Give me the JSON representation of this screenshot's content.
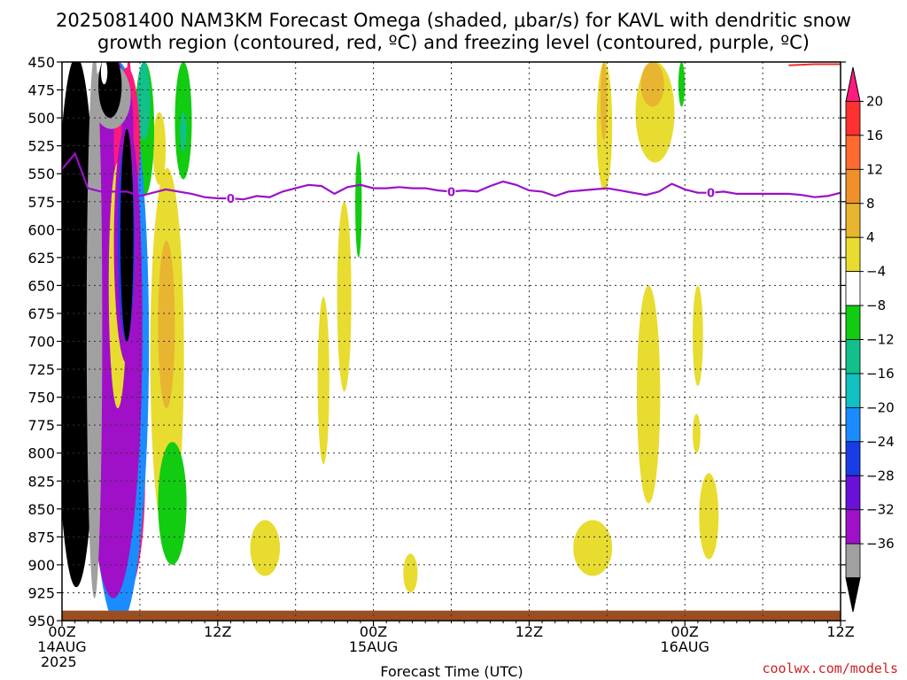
{
  "chart_data": {
    "type": "heatmap",
    "title_line1": "2025081400 NAM3KM Forecast Omega (shaded, μbar/s) for KAVL with dendritic snow",
    "title_line2": "growth region (contoured, red, ºC) and freezing level (contoured, purple, ºC)",
    "xlabel": "Forecast Time (UTC)",
    "credit": "coolwx.com/models",
    "x_unit": "forecast hour",
    "xlim": [
      0,
      60
    ],
    "ylim": [
      450,
      950
    ],
    "y_ticks": [
      450,
      475,
      500,
      525,
      550,
      575,
      600,
      625,
      650,
      675,
      700,
      725,
      750,
      775,
      800,
      825,
      850,
      875,
      900,
      925,
      950
    ],
    "x_ticks": [
      {
        "x": 0,
        "lines": [
          "00Z",
          "14AUG",
          "2025"
        ]
      },
      {
        "x": 12,
        "lines": [
          "12Z"
        ]
      },
      {
        "x": 24,
        "lines": [
          "00Z",
          "15AUG"
        ]
      },
      {
        "x": 36,
        "lines": [
          "12Z"
        ]
      },
      {
        "x": 48,
        "lines": [
          "00Z",
          "16AUG"
        ]
      },
      {
        "x": 60,
        "lines": [
          "12Z"
        ]
      }
    ],
    "grid": true,
    "colorbar": {
      "labels": [
        "20",
        "16",
        "12",
        "8",
        "4",
        "−4",
        "−8",
        "−12",
        "−16",
        "−20",
        "−24",
        "−28",
        "−32",
        "−36"
      ],
      "bins": [
        {
          "color": "#ff1a7d",
          "kind": "triangle-up"
        },
        {
          "color": "#ff3030"
        },
        {
          "color": "#ff6a30"
        },
        {
          "color": "#f0902a"
        },
        {
          "color": "#e8b530"
        },
        {
          "color": "#e8dc30"
        },
        {
          "color": "#ffffff"
        },
        {
          "color": "#11cc11"
        },
        {
          "color": "#11c08a"
        },
        {
          "color": "#11c0c0"
        },
        {
          "color": "#1a8cff"
        },
        {
          "color": "#1a3ce6"
        },
        {
          "color": "#6a10d8"
        },
        {
          "color": "#a010c8"
        },
        {
          "color": "#a0a0a0"
        },
        {
          "color": "#000000",
          "kind": "triangle-down"
        }
      ]
    },
    "freezing_level": {
      "label": "0",
      "color": "#9a10c8",
      "label_at_hours": [
        13,
        30,
        50
      ],
      "points": [
        [
          0,
          546
        ],
        [
          1,
          532
        ],
        [
          2,
          563
        ],
        [
          3,
          566
        ],
        [
          4,
          566
        ],
        [
          5,
          566
        ],
        [
          6,
          570
        ],
        [
          7,
          567
        ],
        [
          8,
          564
        ],
        [
          9,
          566
        ],
        [
          10,
          568
        ],
        [
          11,
          571
        ],
        [
          12,
          572
        ],
        [
          13,
          572
        ],
        [
          14,
          573
        ],
        [
          15,
          570
        ],
        [
          16,
          571
        ],
        [
          17,
          566
        ],
        [
          18,
          563
        ],
        [
          19,
          560
        ],
        [
          20,
          561
        ],
        [
          21,
          568
        ],
        [
          22,
          562
        ],
        [
          23,
          560
        ],
        [
          24,
          563
        ],
        [
          25,
          563
        ],
        [
          26,
          562
        ],
        [
          27,
          563
        ],
        [
          28,
          563
        ],
        [
          29,
          565
        ],
        [
          30,
          566
        ],
        [
          31,
          565
        ],
        [
          32,
          566
        ],
        [
          33,
          561
        ],
        [
          34,
          557
        ],
        [
          35,
          560
        ],
        [
          36,
          565
        ],
        [
          37,
          566
        ],
        [
          38,
          570
        ],
        [
          39,
          566
        ],
        [
          40,
          565
        ],
        [
          41,
          564
        ],
        [
          42,
          563
        ],
        [
          43,
          565
        ],
        [
          44,
          567
        ],
        [
          45,
          569
        ],
        [
          46,
          566
        ],
        [
          47,
          559
        ],
        [
          48,
          564
        ],
        [
          49,
          567
        ],
        [
          50,
          567
        ],
        [
          51,
          566
        ],
        [
          52,
          568
        ],
        [
          53,
          568
        ],
        [
          54,
          568
        ],
        [
          55,
          568
        ],
        [
          56,
          568
        ],
        [
          57,
          569
        ],
        [
          58,
          571
        ],
        [
          59,
          570
        ],
        [
          60,
          567
        ]
      ]
    },
    "dgz_contour": {
      "color": "#ee3030",
      "points": [
        [
          56,
          453
        ],
        [
          58,
          452
        ],
        [
          60,
          452
        ]
      ]
    },
    "terrain": {
      "color": "#9a4e22",
      "top_pressure": 941,
      "bottom_pressure": 950
    },
    "shaded_regions": [
      {
        "color": "#e8dc30",
        "x": [
          6.8,
          9.4
        ],
        "y": [
          545,
          880
        ]
      },
      {
        "color": "#e8b530",
        "x": [
          7.4,
          8.7
        ],
        "y": [
          610,
          760
        ]
      },
      {
        "color": "#e8dc30",
        "x": [
          7.0,
          8.0
        ],
        "y": [
          495,
          560
        ]
      },
      {
        "color": "#11cc11",
        "x": [
          8.7,
          10.0
        ],
        "y": [
          450,
          555
        ]
      },
      {
        "color": "#11c08a",
        "x": [
          9.1,
          9.6
        ],
        "y": [
          495,
          530
        ]
      },
      {
        "color": "#11cc11",
        "x": [
          7.4,
          9.6
        ],
        "y": [
          790,
          900
        ]
      },
      {
        "color": "#e8dc30",
        "x": [
          14.5,
          16.8
        ],
        "y": [
          860,
          910
        ]
      },
      {
        "color": "#e8dc30",
        "x": [
          19.7,
          20.6
        ],
        "y": [
          660,
          810
        ]
      },
      {
        "color": "#e8dc30",
        "x": [
          21.2,
          22.3
        ],
        "y": [
          575,
          745
        ]
      },
      {
        "color": "#11cc11",
        "x": [
          22.6,
          23.1
        ],
        "y": [
          530,
          625
        ]
      },
      {
        "color": "#e8dc30",
        "x": [
          26.3,
          27.4
        ],
        "y": [
          890,
          925
        ]
      },
      {
        "color": "#e8dc30",
        "x": [
          39.4,
          42.4
        ],
        "y": [
          860,
          910
        ]
      },
      {
        "color": "#e8dc30",
        "x": [
          41.2,
          42.4
        ],
        "y": [
          450,
          565
        ]
      },
      {
        "color": "#e8b530",
        "x": [
          41.5,
          42.0
        ],
        "y": [
          450,
          520
        ]
      },
      {
        "color": "#e8dc30",
        "x": [
          44.2,
          47.2
        ],
        "y": [
          450,
          540
        ]
      },
      {
        "color": "#e8b530",
        "x": [
          44.6,
          46.4
        ],
        "y": [
          450,
          490
        ]
      },
      {
        "color": "#11cc11",
        "x": [
          47.5,
          48.0
        ],
        "y": [
          450,
          490
        ]
      },
      {
        "color": "#e8dc30",
        "x": [
          44.3,
          46.1
        ],
        "y": [
          650,
          845
        ]
      },
      {
        "color": "#e8dc30",
        "x": [
          48.6,
          49.4
        ],
        "y": [
          650,
          740
        ]
      },
      {
        "color": "#e8dc30",
        "x": [
          48.6,
          49.2
        ],
        "y": [
          765,
          800
        ]
      },
      {
        "color": "#e8dc30",
        "x": [
          49.1,
          50.6
        ],
        "y": [
          818,
          895
        ]
      },
      {
        "color": "#ff1a7d",
        "x": [
          2.6,
          6.4
        ],
        "y": [
          720,
          935
        ]
      },
      {
        "color": "#ff6a30",
        "x": [
          3.9,
          4.5
        ],
        "y": [
          780,
          925
        ]
      },
      {
        "color": "#e8dc30",
        "x": [
          4.6,
          5.4
        ],
        "y": [
          730,
          935
        ]
      },
      {
        "color": "#ff1a7d",
        "x": [
          4.8,
          5.5
        ],
        "y": [
          445,
          720
        ]
      },
      {
        "color": "#11cc11",
        "x": [
          5.6,
          7.1
        ],
        "y": [
          450,
          570
        ]
      },
      {
        "color": "#11c08a",
        "x": [
          5.8,
          6.8
        ],
        "y": [
          450,
          520
        ]
      },
      {
        "color": "#1a8cff",
        "x": [
          2.0,
          6.7
        ],
        "y": [
          450,
          955
        ]
      },
      {
        "color": "#a010c8",
        "x": [
          1.7,
          6.2
        ],
        "y": [
          445,
          930
        ]
      },
      {
        "color": "#ff1a7d",
        "x": [
          4.0,
          6.0
        ],
        "y": [
          455,
          590
        ]
      },
      {
        "color": "#a010c8",
        "x": [
          4.6,
          5.5
        ],
        "y": [
          470,
          550
        ]
      },
      {
        "color": "#e8dc30",
        "x": [
          3.6,
          5.0
        ],
        "y": [
          540,
          760
        ]
      },
      {
        "color": "#a0a0a0",
        "x": [
          2.3,
          5.3
        ],
        "y": [
          452,
          510
        ]
      },
      {
        "color": "#000000",
        "x": [
          2.8,
          4.6
        ],
        "y": [
          442,
          500
        ]
      },
      {
        "color": "#ffffff",
        "x": [
          3.0,
          3.5
        ],
        "y": [
          448,
          470
        ]
      },
      {
        "color": "#a010c8",
        "x": [
          4.0,
          6.0
        ],
        "y": [
          505,
          720
        ]
      },
      {
        "color": "#1a3ce6",
        "x": [
          4.3,
          5.6
        ],
        "y": [
          520,
          700
        ]
      },
      {
        "color": "#000000",
        "x": [
          4.5,
          5.5
        ],
        "y": [
          510,
          700
        ]
      },
      {
        "color": "#000000",
        "x": [
          -0.5,
          2.7
        ],
        "y": [
          445,
          920
        ]
      },
      {
        "color": "#a0a0a0",
        "x": [
          1.9,
          3.1
        ],
        "y": [
          445,
          930
        ]
      }
    ]
  }
}
